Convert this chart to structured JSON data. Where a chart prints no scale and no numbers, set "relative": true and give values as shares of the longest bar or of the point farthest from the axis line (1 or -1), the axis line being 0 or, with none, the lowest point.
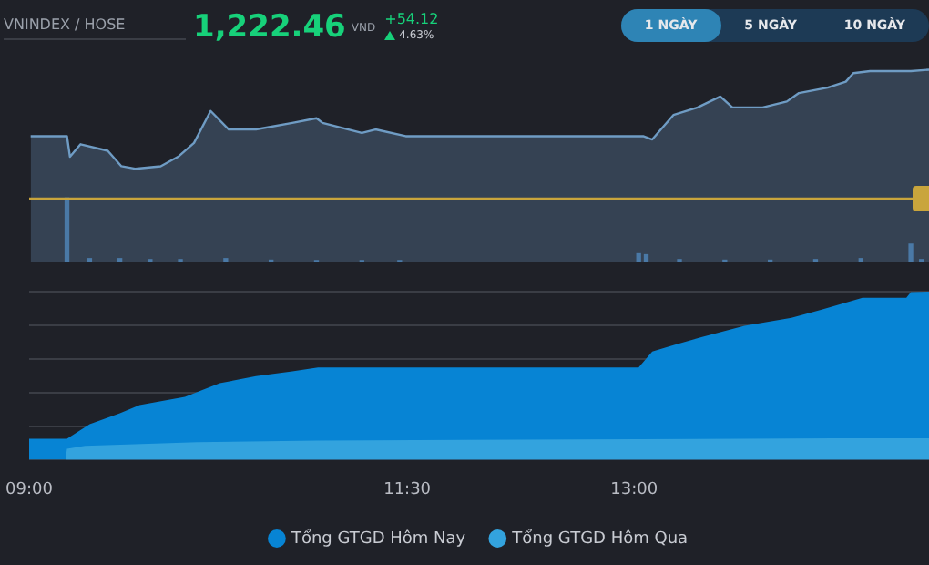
{
  "chart_data": [
    {
      "type": "area",
      "title": "VNINDEX / HOSE",
      "subtitle": "1,222.46",
      "annotations": [
        "VND",
        "+54.12",
        "4.63%",
        "1 NGÀY",
        "5 NGÀY",
        "10 NGÀY"
      ],
      "relative": true,
      "xlim": [
        9,
        14.95
      ],
      "tick_labels": false,
      "grid": false,
      "legend": false,
      "ref_lines": [
        {
          "axis": "y",
          "value": 0.33,
          "color": "#c9a53c"
        }
      ],
      "series": [
        {
          "color": "#6f9cc4",
          "x": [
            9.01,
            9.25,
            9.27,
            9.34,
            9.52,
            9.61,
            9.7,
            9.87,
            9.99,
            10.09,
            10.2,
            10.32,
            10.5,
            10.74,
            10.9,
            10.94,
            11.2,
            11.29,
            11.49,
            13.06,
            13.12,
            13.26,
            13.42,
            13.57,
            13.65,
            13.85,
            14.01,
            14.09,
            14.28,
            14.4,
            14.45,
            14.56,
            14.83,
            14.95
          ],
          "values": [
            0.655,
            0.655,
            0.548,
            0.613,
            0.579,
            0.499,
            0.486,
            0.499,
            0.551,
            0.62,
            0.786,
            0.69,
            0.69,
            0.724,
            0.748,
            0.724,
            0.672,
            0.69,
            0.655,
            0.655,
            0.638,
            0.765,
            0.804,
            0.861,
            0.804,
            0.804,
            0.835,
            0.879,
            0.907,
            0.938,
            0.982,
            0.993,
            0.993,
            1
          ]
        },
        {
          "type": "bar",
          "color": "#4a79a6",
          "x": [
            9.25,
            9.4,
            9.6,
            9.8,
            10.0,
            10.3,
            10.6,
            10.9,
            11.2,
            11.45,
            13.03,
            13.08,
            13.3,
            13.6,
            13.9,
            14.2,
            14.5,
            14.83,
            14.9
          ],
          "values": [
            0.334,
            0.02,
            0.02,
            0.015,
            0.015,
            0.02,
            0.012,
            0.01,
            0.01,
            0.01,
            0.045,
            0.04,
            0.015,
            0.012,
            0.012,
            0.015,
            0.02,
            0.095,
            0.015
          ]
        }
      ]
    },
    {
      "type": "area",
      "relative": true,
      "xlim": [
        9,
        14.95
      ],
      "xticks": [
        {
          "value": 9,
          "label": "09:00"
        },
        {
          "value": 11.5,
          "label": "11:30"
        },
        {
          "value": 13,
          "label": "13:00"
        }
      ],
      "tick_labels": "x",
      "grid": "y",
      "legend": "bottom",
      "series": [
        {
          "name": "Tổng GTGD Hôm Nay",
          "color": "#0784d4",
          "x": [
            9.0,
            9.25,
            9.4,
            9.6,
            9.73,
            10.03,
            10.26,
            10.5,
            10.74,
            10.91,
            13.03,
            13.12,
            13.26,
            13.45,
            13.73,
            14.04,
            14.24,
            14.51,
            14.8,
            14.83,
            14.95
          ],
          "values": [
            0.124,
            0.124,
            0.211,
            0.276,
            0.325,
            0.374,
            0.455,
            0.497,
            0.526,
            0.549,
            0.549,
            0.643,
            0.682,
            0.73,
            0.796,
            0.844,
            0.893,
            0.964,
            0.964,
            0.997,
            1
          ]
        },
        {
          "name": "Tổng GTGD Hôm Qua",
          "color": "#33a3de",
          "x": [
            9.24,
            9.25,
            9.37,
            10.11,
            10.9,
            13.03,
            14.32,
            14.95
          ],
          "values": [
            0,
            0.065,
            0.082,
            0.104,
            0.114,
            0.121,
            0.127,
            0.127
          ]
        }
      ]
    }
  ]
}
